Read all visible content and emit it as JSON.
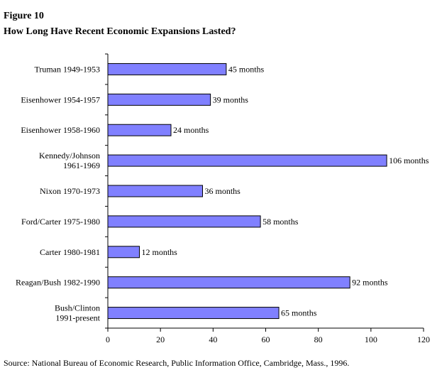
{
  "figure": {
    "label": "Figure 10",
    "title": "How Long Have Recent Economic Expansions Lasted?"
  },
  "source": "Source: National Bureau of Economic Research, Public Information Office, Cambridge, Mass., 1996.",
  "colors": {
    "bar_fill": "#8080ff",
    "bar_stroke": "#000000",
    "axis": "#000000",
    "background": "#ffffff"
  },
  "chart_data": {
    "type": "bar",
    "orientation": "horizontal",
    "title": "How Long Have Recent Economic Expansions Lasted?",
    "xlabel": "",
    "ylabel": "",
    "xlim": [
      0,
      120
    ],
    "x_ticks": [
      0,
      20,
      40,
      60,
      80,
      100,
      120
    ],
    "grid": false,
    "legend": "none",
    "categories": [
      [
        "Truman 1949-1953"
      ],
      [
        "Eisenhower 1954-1957"
      ],
      [
        "Eisenhower 1958-1960"
      ],
      [
        "Kennedy/Johnson",
        "1961-1969"
      ],
      [
        "Nixon 1970-1973"
      ],
      [
        "Ford/Carter 1975-1980"
      ],
      [
        "Carter 1980-1981"
      ],
      [
        "Reagan/Bush 1982-1990"
      ],
      [
        "Bush/Clinton",
        "1991-present"
      ]
    ],
    "values": [
      45,
      39,
      24,
      106,
      36,
      58,
      12,
      92,
      65
    ],
    "data_labels": [
      "45 months",
      "39 months",
      "24 months",
      "106 months",
      "36 months",
      "58 months",
      "12 months",
      "92 months",
      "65 months"
    ]
  }
}
